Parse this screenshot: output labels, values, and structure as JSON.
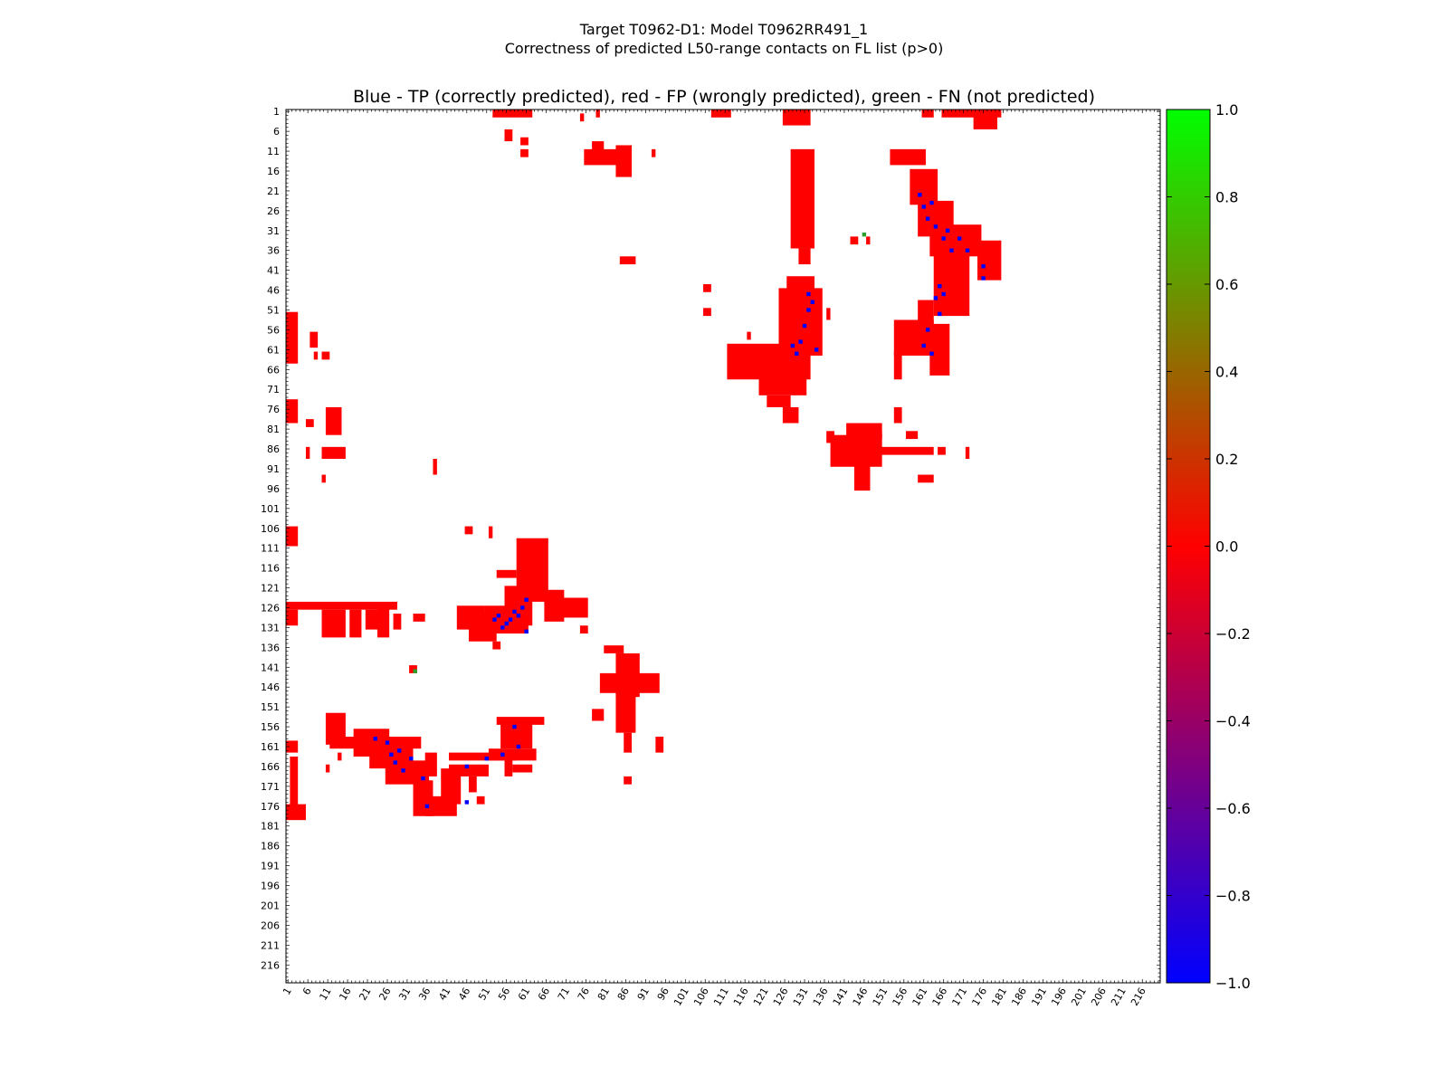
{
  "chart_data": {
    "type": "heatmap",
    "title_lines": [
      "Target T0962-D1: Model T0962RR491_1",
      "Correctness of predicted L50-range contacts on FL list (p>0)"
    ],
    "subtitle": "Blue - TP (correctly predicted), red - FP (wrongly predicted), green - FN (not predicted)",
    "n_residues": 220,
    "axis_range": [
      1,
      220
    ],
    "ticks": [
      1,
      6,
      11,
      16,
      21,
      26,
      31,
      36,
      41,
      46,
      51,
      56,
      61,
      66,
      71,
      76,
      81,
      86,
      91,
      96,
      101,
      106,
      111,
      116,
      121,
      126,
      131,
      136,
      141,
      146,
      151,
      156,
      161,
      166,
      171,
      176,
      181,
      186,
      191,
      196,
      201,
      206,
      211,
      216
    ],
    "colorbar": {
      "range": [
        -1.0,
        1.0
      ],
      "ticks": [
        "1.0",
        "0.8",
        "0.6",
        "0.4",
        "0.2",
        "0.0",
        "−0.2",
        "−0.4",
        "−0.6",
        "−0.8",
        "−1.0"
      ],
      "tick_values": [
        1.0,
        0.8,
        0.6,
        0.4,
        0.2,
        0.0,
        -0.2,
        -0.4,
        -0.6,
        -0.8,
        -1.0
      ],
      "colors": {
        "top": "#00ff00",
        "middle": "#ff0000",
        "bottom": "#0000ff"
      }
    },
    "cell_colors": {
      "FP": "#ff0000",
      "TP": "#0000ff",
      "FN": "#2ca02c"
    },
    "fp_regions": [
      {
        "x": [
          53,
          62
        ],
        "y": [
          1,
          2
        ]
      },
      {
        "x": [
          56,
          57
        ],
        "y": [
          6,
          8
        ]
      },
      {
        "x": [
          60,
          61
        ],
        "y": [
          8,
          9
        ]
      },
      {
        "x": [
          60,
          61
        ],
        "y": [
          11,
          12
        ]
      },
      {
        "x": [
          75,
          75
        ],
        "y": [
          2,
          3
        ]
      },
      {
        "x": [
          79,
          79
        ],
        "y": [
          1,
          2
        ]
      },
      {
        "x": [
          76,
          84
        ],
        "y": [
          11,
          14
        ]
      },
      {
        "x": [
          78,
          80
        ],
        "y": [
          9,
          11
        ]
      },
      {
        "x": [
          84,
          87
        ],
        "y": [
          10,
          17
        ]
      },
      {
        "x": [
          93,
          93
        ],
        "y": [
          11,
          12
        ]
      },
      {
        "x": [
          108,
          112
        ],
        "y": [
          1,
          2
        ]
      },
      {
        "x": [
          126,
          132
        ],
        "y": [
          1,
          4
        ]
      },
      {
        "x": [
          128,
          133
        ],
        "y": [
          11,
          35
        ]
      },
      {
        "x": [
          130,
          132
        ],
        "y": [
          36,
          39
        ]
      },
      {
        "x": [
          153,
          161
        ],
        "y": [
          11,
          14
        ]
      },
      {
        "x": [
          158,
          164
        ],
        "y": [
          16,
          24
        ]
      },
      {
        "x": [
          160,
          168
        ],
        "y": [
          24,
          32
        ]
      },
      {
        "x": [
          163,
          175
        ],
        "y": [
          30,
          37
        ]
      },
      {
        "x": [
          175,
          180
        ],
        "y": [
          34,
          43
        ]
      },
      {
        "x": [
          164,
          172
        ],
        "y": [
          37,
          52
        ]
      },
      {
        "x": [
          160,
          163
        ],
        "y": [
          49,
          55
        ]
      },
      {
        "x": [
          154,
          163
        ],
        "y": [
          54,
          62
        ]
      },
      {
        "x": [
          163,
          167
        ],
        "y": [
          55,
          67
        ]
      },
      {
        "x": [
          154,
          155
        ],
        "y": [
          62,
          68
        ]
      },
      {
        "x": [
          161,
          163
        ],
        "y": [
          1,
          2
        ]
      },
      {
        "x": [
          166,
          180
        ],
        "y": [
          1,
          2
        ]
      },
      {
        "x": [
          174,
          179
        ],
        "y": [
          1,
          5
        ]
      },
      {
        "x": [
          125,
          135
        ],
        "y": [
          46,
          62
        ]
      },
      {
        "x": [
          127,
          133
        ],
        "y": [
          43,
          46
        ]
      },
      {
        "x": [
          137,
          137
        ],
        "y": [
          51,
          53
        ]
      },
      {
        "x": [
          112,
          132
        ],
        "y": [
          60,
          68
        ]
      },
      {
        "x": [
          120,
          131
        ],
        "y": [
          68,
          72
        ]
      },
      {
        "x": [
          122,
          127
        ],
        "y": [
          73,
          75
        ]
      },
      {
        "x": [
          126,
          129
        ],
        "y": [
          76,
          79
        ]
      },
      {
        "x": [
          106,
          107
        ],
        "y": [
          45,
          46
        ]
      },
      {
        "x": [
          106,
          107
        ],
        "y": [
          51,
          52
        ]
      },
      {
        "x": [
          117,
          117
        ],
        "y": [
          57,
          58
        ]
      },
      {
        "x": [
          138,
          150
        ],
        "y": [
          83,
          90
        ]
      },
      {
        "x": [
          150,
          163
        ],
        "y": [
          86,
          87
        ]
      },
      {
        "x": [
          142,
          150
        ],
        "y": [
          80,
          83
        ]
      },
      {
        "x": [
          144,
          147
        ],
        "y": [
          90,
          96
        ]
      },
      {
        "x": [
          137,
          138
        ],
        "y": [
          82,
          84
        ]
      },
      {
        "x": [
          154,
          155
        ],
        "y": [
          76,
          79
        ]
      },
      {
        "x": [
          157,
          159
        ],
        "y": [
          82,
          83
        ]
      },
      {
        "x": [
          165,
          166
        ],
        "y": [
          86,
          87
        ]
      },
      {
        "x": [
          150,
          150
        ],
        "y": [
          82,
          83
        ]
      },
      {
        "x": [
          160,
          163
        ],
        "y": [
          93,
          94
        ]
      },
      {
        "x": [
          172,
          172
        ],
        "y": [
          86,
          88
        ]
      },
      {
        "x": [
          143,
          144
        ],
        "y": [
          33,
          34
        ]
      },
      {
        "x": [
          147,
          147
        ],
        "y": [
          33,
          34
        ]
      },
      {
        "x": [
          85,
          88
        ],
        "y": [
          38,
          39
        ]
      },
      {
        "x": [
          1,
          3
        ],
        "y": [
          52,
          64
        ]
      },
      {
        "x": [
          7,
          8
        ],
        "y": [
          57,
          60
        ]
      },
      {
        "x": [
          10,
          11
        ],
        "y": [
          62,
          63
        ]
      },
      {
        "x": [
          8,
          8
        ],
        "y": [
          62,
          63
        ]
      },
      {
        "x": [
          11,
          14
        ],
        "y": [
          76,
          82
        ]
      },
      {
        "x": [
          10,
          15
        ],
        "y": [
          86,
          88
        ]
      },
      {
        "x": [
          1,
          3
        ],
        "y": [
          74,
          79
        ]
      },
      {
        "x": [
          6,
          7
        ],
        "y": [
          79,
          80
        ]
      },
      {
        "x": [
          6,
          6
        ],
        "y": [
          86,
          88
        ]
      },
      {
        "x": [
          10,
          10
        ],
        "y": [
          93,
          94
        ]
      },
      {
        "x": [
          38,
          38
        ],
        "y": [
          89,
          92
        ]
      },
      {
        "x": [
          1,
          3
        ],
        "y": [
          106,
          110
        ]
      },
      {
        "x": [
          46,
          47
        ],
        "y": [
          106,
          107
        ]
      },
      {
        "x": [
          52,
          52
        ],
        "y": [
          106,
          108
        ]
      },
      {
        "x": [
          59,
          66
        ],
        "y": [
          109,
          124
        ]
      },
      {
        "x": [
          56,
          62
        ],
        "y": [
          121,
          130
        ]
      },
      {
        "x": [
          51,
          61
        ],
        "y": [
          126,
          132
        ]
      },
      {
        "x": [
          47,
          53
        ],
        "y": [
          128,
          134
        ]
      },
      {
        "x": [
          54,
          58
        ],
        "y": [
          117,
          118
        ]
      },
      {
        "x": [
          53,
          54
        ],
        "y": [
          135,
          136
        ]
      },
      {
        "x": [
          66,
          70
        ],
        "y": [
          122,
          129
        ]
      },
      {
        "x": [
          70,
          76
        ],
        "y": [
          124,
          128
        ]
      },
      {
        "x": [
          75,
          76
        ],
        "y": [
          131,
          132
        ]
      },
      {
        "x": [
          44,
          50
        ],
        "y": [
          126,
          131
        ]
      },
      {
        "x": [
          1,
          28
        ],
        "y": [
          125,
          126
        ]
      },
      {
        "x": [
          1,
          3
        ],
        "y": [
          127,
          130
        ]
      },
      {
        "x": [
          10,
          15
        ],
        "y": [
          127,
          133
        ]
      },
      {
        "x": [
          17,
          19
        ],
        "y": [
          127,
          133
        ]
      },
      {
        "x": [
          21,
          24
        ],
        "y": [
          127,
          131
        ]
      },
      {
        "x": [
          24,
          26
        ],
        "y": [
          126,
          133
        ]
      },
      {
        "x": [
          28,
          29
        ],
        "y": [
          128,
          131
        ]
      },
      {
        "x": [
          33,
          35
        ],
        "y": [
          128,
          129
        ]
      },
      {
        "x": [
          81,
          85
        ],
        "y": [
          136,
          137
        ]
      },
      {
        "x": [
          84,
          89
        ],
        "y": [
          138,
          148
        ]
      },
      {
        "x": [
          80,
          94
        ],
        "y": [
          143,
          147
        ]
      },
      {
        "x": [
          84,
          88
        ],
        "y": [
          148,
          157
        ]
      },
      {
        "x": [
          86,
          87
        ],
        "y": [
          158,
          162
        ]
      },
      {
        "x": [
          78,
          80
        ],
        "y": [
          152,
          154
        ]
      },
      {
        "x": [
          94,
          95
        ],
        "y": [
          159,
          162
        ]
      },
      {
        "x": [
          86,
          87
        ],
        "y": [
          169,
          170
        ]
      },
      {
        "x": [
          32,
          33
        ],
        "y": [
          141,
          142
        ]
      },
      {
        "x": [
          54,
          65
        ],
        "y": [
          154,
          155
        ]
      },
      {
        "x": [
          55,
          62
        ],
        "y": [
          155,
          161
        ]
      },
      {
        "x": [
          52,
          63
        ],
        "y": [
          162,
          164
        ]
      },
      {
        "x": [
          56,
          57
        ],
        "y": [
          164,
          168
        ]
      },
      {
        "x": [
          58,
          62
        ],
        "y": [
          166,
          167
        ]
      },
      {
        "x": [
          42,
          58
        ],
        "y": [
          163,
          164
        ]
      },
      {
        "x": [
          11,
          15
        ],
        "y": [
          153,
          160
        ]
      },
      {
        "x": [
          12,
          34
        ],
        "y": [
          159,
          161
        ]
      },
      {
        "x": [
          18,
          26
        ],
        "y": [
          157,
          163
        ]
      },
      {
        "x": [
          22,
          32
        ],
        "y": [
          161,
          166
        ]
      },
      {
        "x": [
          26,
          36
        ],
        "y": [
          165,
          170
        ]
      },
      {
        "x": [
          33,
          37
        ],
        "y": [
          170,
          178
        ]
      },
      {
        "x": [
          36,
          43
        ],
        "y": [
          174,
          178
        ]
      },
      {
        "x": [
          40,
          44
        ],
        "y": [
          167,
          175
        ]
      },
      {
        "x": [
          42,
          51
        ],
        "y": [
          166,
          168
        ]
      },
      {
        "x": [
          47,
          48
        ],
        "y": [
          169,
          172
        ]
      },
      {
        "x": [
          49,
          50
        ],
        "y": [
          174,
          175
        ]
      },
      {
        "x": [
          36,
          38
        ],
        "y": [
          163,
          168
        ]
      },
      {
        "x": [
          1,
          3
        ],
        "y": [
          160,
          162
        ]
      },
      {
        "x": [
          2,
          3
        ],
        "y": [
          164,
          178
        ]
      },
      {
        "x": [
          1,
          5
        ],
        "y": [
          176,
          179
        ]
      },
      {
        "x": [
          11,
          11
        ],
        "y": [
          166,
          167
        ]
      },
      {
        "x": [
          14,
          14
        ],
        "y": [
          163,
          164
        ]
      }
    ],
    "tp_cells": [
      [
        53,
        129
      ],
      [
        54,
        128
      ],
      [
        55,
        131
      ],
      [
        56,
        130
      ],
      [
        57,
        129
      ],
      [
        58,
        127
      ],
      [
        59,
        128
      ],
      [
        60,
        126
      ],
      [
        61,
        132
      ],
      [
        61,
        124
      ],
      [
        23,
        159
      ],
      [
        26,
        160
      ],
      [
        27,
        163
      ],
      [
        28,
        165
      ],
      [
        29,
        162
      ],
      [
        30,
        167
      ],
      [
        32,
        164
      ],
      [
        35,
        169
      ],
      [
        36,
        176
      ],
      [
        46,
        175
      ],
      [
        46,
        166
      ],
      [
        51,
        164
      ],
      [
        55,
        163
      ],
      [
        59,
        161
      ],
      [
        58,
        156
      ],
      [
        128,
        60
      ],
      [
        129,
        62
      ],
      [
        130,
        59
      ],
      [
        131,
        55
      ],
      [
        132,
        51
      ],
      [
        132,
        47
      ],
      [
        133,
        49
      ],
      [
        134,
        61
      ],
      [
        162,
        56
      ],
      [
        161,
        60
      ],
      [
        163,
        62
      ],
      [
        160,
        22
      ],
      [
        161,
        25
      ],
      [
        162,
        28
      ],
      [
        163,
        24
      ],
      [
        164,
        30
      ],
      [
        166,
        33
      ],
      [
        167,
        31
      ],
      [
        168,
        36
      ],
      [
        170,
        33
      ],
      [
        172,
        36
      ],
      [
        176,
        40
      ],
      [
        176,
        43
      ],
      [
        165,
        45
      ],
      [
        164,
        48
      ],
      [
        165,
        52
      ],
      [
        166,
        47
      ]
    ],
    "fn_cells": [
      [
        146,
        32
      ],
      [
        33,
        142
      ]
    ]
  }
}
